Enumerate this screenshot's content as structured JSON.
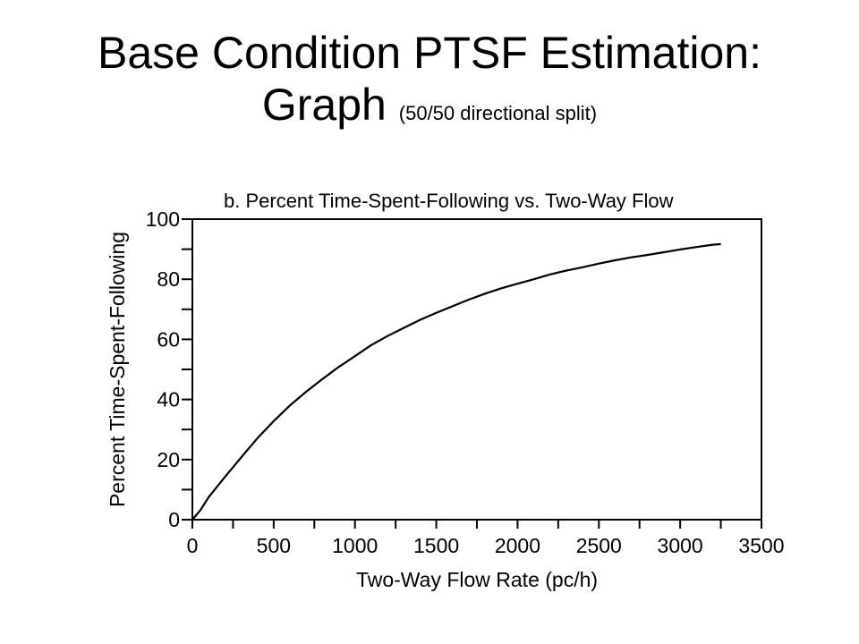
{
  "slide": {
    "title_line1": "Base Condition PTSF Estimation:",
    "title_line2": "Graph",
    "title_note": "(50/50 directional split)"
  },
  "chart_data": {
    "type": "line",
    "title": "b.  Percent Time-Spent-Following vs. Two-Way Flow",
    "xlabel": "Two-Way Flow Rate (pc/h)",
    "ylabel": "Percent Time-Spent-Following",
    "xlim": [
      0,
      3500
    ],
    "ylim": [
      0,
      100
    ],
    "xticks": [
      0,
      500,
      1000,
      1500,
      2000,
      2500,
      3000,
      3500
    ],
    "yticks": [
      0,
      20,
      40,
      60,
      80,
      100
    ],
    "grid": false,
    "series": [
      {
        "x": [
          0,
          50,
          100,
          200,
          300,
          400,
          500,
          600,
          700,
          800,
          900,
          1000,
          1100,
          1200,
          1300,
          1400,
          1500,
          1600,
          1700,
          1800,
          1900,
          2000,
          2100,
          2200,
          2300,
          2400,
          2500,
          2600,
          2700,
          2800,
          2900,
          3000,
          3100,
          3200,
          3250
        ],
        "y": [
          0,
          3.2,
          7.5,
          14.2,
          20.7,
          27.1,
          32.8,
          38.0,
          42.6,
          46.8,
          50.8,
          54.4,
          58.1,
          61.1,
          63.8,
          66.5,
          68.8,
          71.0,
          73.2,
          75.2,
          77.0,
          78.5,
          80.0,
          81.6,
          82.9,
          84.0,
          85.2,
          86.3,
          87.3,
          88.1,
          89.0,
          89.9,
          90.7,
          91.5,
          91.7
        ]
      }
    ]
  }
}
